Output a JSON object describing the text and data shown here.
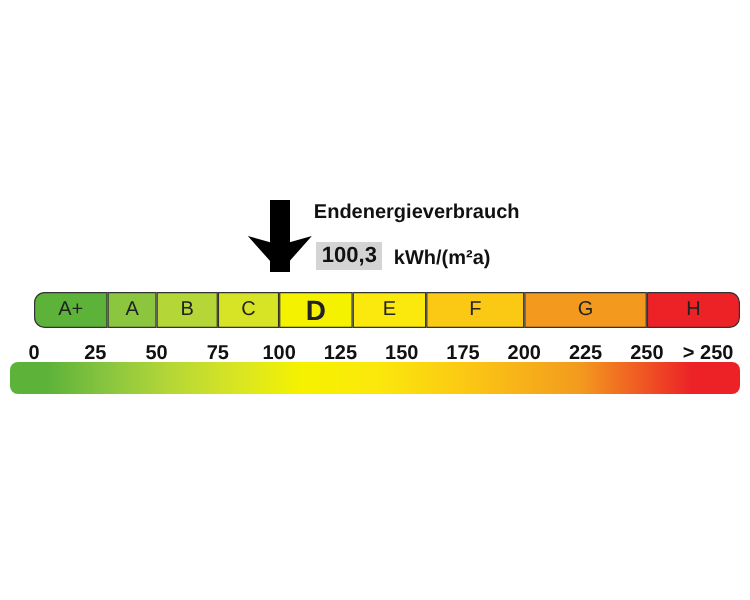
{
  "chart_data": {
    "type": "bar",
    "orientation": "horizontal",
    "stacked": true,
    "title": "Endenergieverbrauch",
    "xlabel": "kWh/(m²a)",
    "categories": [
      null
    ],
    "series": [
      {
        "name": "A+",
        "color": "#5db33a",
        "values": [
          30
        ]
      },
      {
        "name": "A",
        "color": "#8cc63f",
        "values": [
          20
        ]
      },
      {
        "name": "B",
        "color": "#b4d637",
        "values": [
          25
        ]
      },
      {
        "name": "C",
        "color": "#d6e425",
        "values": [
          25
        ]
      },
      {
        "name": "D",
        "color": "#f5f200",
        "values": [
          30
        ]
      },
      {
        "name": "E",
        "color": "#fbe80c",
        "values": [
          30
        ]
      },
      {
        "name": "F",
        "color": "#fbc814",
        "values": [
          40
        ]
      },
      {
        "name": "G",
        "color": "#f39a1e",
        "values": [
          50
        ]
      },
      {
        "name": "H",
        "color": "#ec2227",
        "values": [
          38
        ]
      }
    ],
    "xlim": [
      0,
      288
    ],
    "xticks": [
      0,
      25,
      50,
      75,
      100,
      125,
      150,
      175,
      200,
      225,
      250,
      {
        "value": 275,
        "label": "> 250"
      }
    ],
    "ref_lines": [
      {
        "axis": "x",
        "value": 100.3,
        "label": "100,3",
        "color": "#000000"
      }
    ],
    "tick_labels": "x",
    "legend": false,
    "grid": false
  }
}
